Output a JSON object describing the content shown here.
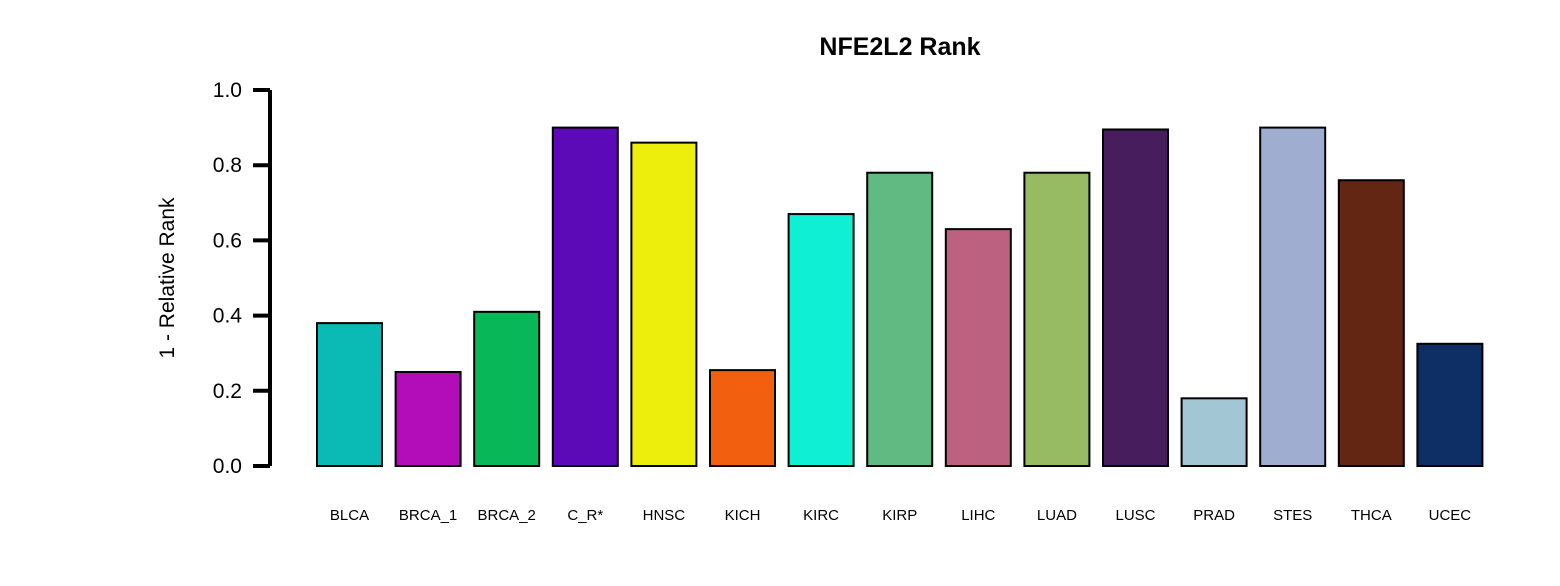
{
  "chart_data": {
    "type": "bar",
    "title": "NFE2L2 Rank",
    "xlabel": "",
    "ylabel": "1 - Relative Rank",
    "ylim": [
      0,
      1
    ],
    "yticks": [
      "0.0",
      "0.2",
      "0.4",
      "0.6",
      "0.8",
      "1.0"
    ],
    "grid": false,
    "categories": [
      "BLCA",
      "BRCA_1",
      "BRCA_2",
      "C_R*",
      "HNSC",
      "KICH",
      "KIRC",
      "KIRP",
      "LIHC",
      "LUAD",
      "LUSC",
      "PRAD",
      "STES",
      "THCA",
      "UCEC"
    ],
    "values": [
      0.38,
      0.25,
      0.41,
      0.9,
      0.86,
      0.255,
      0.67,
      0.78,
      0.63,
      0.78,
      0.895,
      0.18,
      0.9,
      0.76,
      0.325
    ],
    "colors": [
      "#0ABBB5",
      "#B30CB9",
      "#08B758",
      "#5C0AB7",
      "#EEEE0C",
      "#F25F0F",
      "#0FEFD3",
      "#60BA81",
      "#BC617F",
      "#96BB62",
      "#471D5E",
      "#A2C6D4",
      "#9FAED0",
      "#632612",
      "#0E2F66"
    ]
  }
}
